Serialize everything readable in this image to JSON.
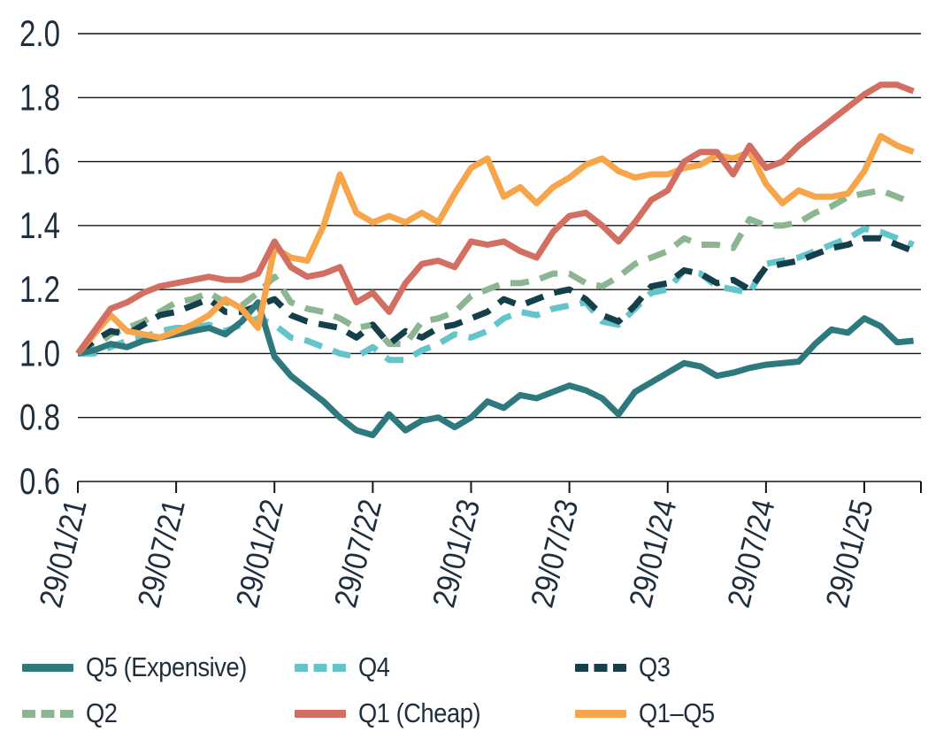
{
  "chart_data": {
    "type": "line",
    "title": "",
    "xlabel": "",
    "ylabel": "",
    "ylim": [
      0.6,
      2.0
    ],
    "grid": "horizontal",
    "legend_position": "bottom",
    "x_start_label": "29/01/21",
    "x_end_label": "29/01/25",
    "x_tick_labels": [
      "29/01/21",
      "29/07/21",
      "29/01/22",
      "29/07/22",
      "29/01/23",
      "29/07/23",
      "29/01/24",
      "29/07/24",
      "29/01/25"
    ],
    "y_ticks": [
      0.6,
      0.8,
      1.0,
      1.2,
      1.4,
      1.6,
      1.8,
      2.0
    ],
    "y_tick_labels": [
      "0.6",
      "0.8",
      "1.0",
      "1.2",
      "1.4",
      "1.6",
      "1.8",
      "2.0"
    ],
    "x_unit": "months from 29/01/21, sampled monthly",
    "draw_order": [
      "q2",
      "q4",
      "q3",
      "q5",
      "q1q5",
      "q1"
    ],
    "series": {
      "q5": {
        "name": "Q5 (Expensive)",
        "color": "#2e797e",
        "dashed": false,
        "values": [
          1.0,
          1.01,
          1.03,
          1.02,
          1.04,
          1.05,
          1.06,
          1.07,
          1.08,
          1.06,
          1.1,
          1.16,
          0.99,
          0.93,
          0.89,
          0.85,
          0.8,
          0.76,
          0.745,
          0.81,
          0.76,
          0.79,
          0.8,
          0.77,
          0.8,
          0.85,
          0.83,
          0.87,
          0.86,
          0.88,
          0.9,
          0.885,
          0.86,
          0.81,
          0.88,
          0.91,
          0.94,
          0.97,
          0.96,
          0.93,
          0.94,
          0.955,
          0.965,
          0.97,
          0.975,
          1.03,
          1.075,
          1.065,
          1.11,
          1.085,
          1.035,
          1.04
        ]
      },
      "q4": {
        "name": "Q4",
        "color": "#63c4c9",
        "dashed": true,
        "values": [
          1.0,
          1.0,
          1.02,
          1.04,
          1.05,
          1.07,
          1.08,
          1.08,
          1.09,
          1.07,
          1.09,
          1.11,
          1.09,
          1.05,
          1.04,
          1.02,
          1.0,
          0.99,
          1.02,
          0.98,
          0.98,
          1.01,
          1.03,
          1.06,
          1.05,
          1.07,
          1.11,
          1.13,
          1.12,
          1.14,
          1.15,
          1.16,
          1.1,
          1.09,
          1.14,
          1.19,
          1.2,
          1.26,
          1.25,
          1.21,
          1.2,
          1.19,
          1.28,
          1.29,
          1.3,
          1.32,
          1.34,
          1.36,
          1.39,
          1.38,
          1.36,
          1.34
        ]
      },
      "q3": {
        "name": "Q3",
        "color": "#153f4a",
        "dashed": true,
        "values": [
          1.0,
          1.04,
          1.07,
          1.06,
          1.09,
          1.12,
          1.13,
          1.15,
          1.17,
          1.13,
          1.13,
          1.15,
          1.17,
          1.12,
          1.1,
          1.09,
          1.08,
          1.05,
          1.09,
          1.03,
          1.07,
          1.05,
          1.08,
          1.09,
          1.11,
          1.13,
          1.17,
          1.15,
          1.17,
          1.19,
          1.2,
          1.17,
          1.12,
          1.1,
          1.15,
          1.21,
          1.22,
          1.26,
          1.25,
          1.22,
          1.23,
          1.2,
          1.27,
          1.28,
          1.29,
          1.31,
          1.33,
          1.34,
          1.36,
          1.36,
          1.34,
          1.32
        ]
      },
      "q2": {
        "name": "Q2",
        "color": "#8cb591",
        "dashed": true,
        "values": [
          1.0,
          1.02,
          1.06,
          1.08,
          1.1,
          1.13,
          1.16,
          1.17,
          1.19,
          1.16,
          1.15,
          1.19,
          1.24,
          1.16,
          1.14,
          1.13,
          1.11,
          1.08,
          1.09,
          1.03,
          1.03,
          1.1,
          1.11,
          1.13,
          1.18,
          1.2,
          1.22,
          1.22,
          1.23,
          1.25,
          1.25,
          1.22,
          1.21,
          1.24,
          1.28,
          1.3,
          1.32,
          1.36,
          1.34,
          1.34,
          1.33,
          1.42,
          1.4,
          1.4,
          1.41,
          1.44,
          1.46,
          1.49,
          1.5,
          1.51,
          1.49,
          1.47
        ]
      },
      "q1": {
        "name": "Q1 (Cheap)",
        "color": "#d26f62",
        "dashed": false,
        "values": [
          1.0,
          1.07,
          1.14,
          1.16,
          1.19,
          1.21,
          1.22,
          1.23,
          1.24,
          1.23,
          1.23,
          1.25,
          1.35,
          1.27,
          1.24,
          1.25,
          1.27,
          1.16,
          1.19,
          1.13,
          1.22,
          1.28,
          1.29,
          1.27,
          1.35,
          1.34,
          1.35,
          1.32,
          1.3,
          1.38,
          1.43,
          1.44,
          1.4,
          1.35,
          1.41,
          1.48,
          1.51,
          1.6,
          1.63,
          1.63,
          1.56,
          1.65,
          1.58,
          1.6,
          1.65,
          1.69,
          1.73,
          1.77,
          1.81,
          1.84,
          1.84,
          1.82
        ]
      },
      "q1q5": {
        "name": "Q1–Q5",
        "color": "#f7a54a",
        "dashed": false,
        "values": [
          1.0,
          1.06,
          1.12,
          1.07,
          1.06,
          1.05,
          1.07,
          1.09,
          1.12,
          1.17,
          1.14,
          1.08,
          1.33,
          1.3,
          1.29,
          1.4,
          1.56,
          1.44,
          1.41,
          1.43,
          1.41,
          1.44,
          1.41,
          1.5,
          1.58,
          1.61,
          1.49,
          1.52,
          1.47,
          1.52,
          1.55,
          1.59,
          1.61,
          1.57,
          1.55,
          1.56,
          1.56,
          1.58,
          1.59,
          1.62,
          1.61,
          1.63,
          1.53,
          1.47,
          1.51,
          1.49,
          1.49,
          1.5,
          1.57,
          1.68,
          1.65,
          1.63
        ]
      }
    },
    "legend_items": [
      {
        "series": "q5",
        "label": "Q5 (Expensive)"
      },
      {
        "series": "q4",
        "label": "Q4"
      },
      {
        "series": "q3",
        "label": "Q3"
      },
      {
        "series": "q2",
        "label": "Q2"
      },
      {
        "series": "q1",
        "label": "Q1 (Cheap)"
      },
      {
        "series": "q1q5",
        "label": "Q1–Q5"
      }
    ],
    "colors": {
      "text": "#1f2e3d",
      "gridline": "#141414"
    }
  }
}
